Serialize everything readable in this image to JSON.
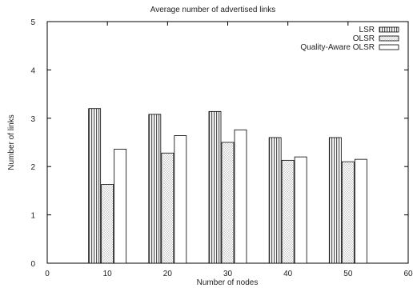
{
  "chart_data": {
    "type": "bar",
    "title": "Average number of advertised links",
    "xlabel": "Number of nodes",
    "ylabel": "Number of links",
    "xlim": [
      0,
      60
    ],
    "ylim": [
      0,
      5
    ],
    "xticks": [
      0,
      10,
      20,
      30,
      40,
      50,
      60
    ],
    "yticks": [
      0,
      1,
      2,
      3,
      4,
      5
    ],
    "grid": false,
    "legend_position": "top-right",
    "x": [
      10,
      20,
      30,
      40,
      50
    ],
    "series": [
      {
        "name": "LSR",
        "pattern": "vertical-lines",
        "values": [
          3.2,
          3.08,
          3.14,
          2.6,
          2.6
        ]
      },
      {
        "name": "OLSR",
        "pattern": "dots",
        "values": [
          1.63,
          2.28,
          2.5,
          2.13,
          2.1
        ]
      },
      {
        "name": "Quality-Aware OLSR",
        "pattern": "blank",
        "values": [
          2.36,
          2.64,
          2.76,
          2.2,
          2.15
        ]
      }
    ]
  }
}
